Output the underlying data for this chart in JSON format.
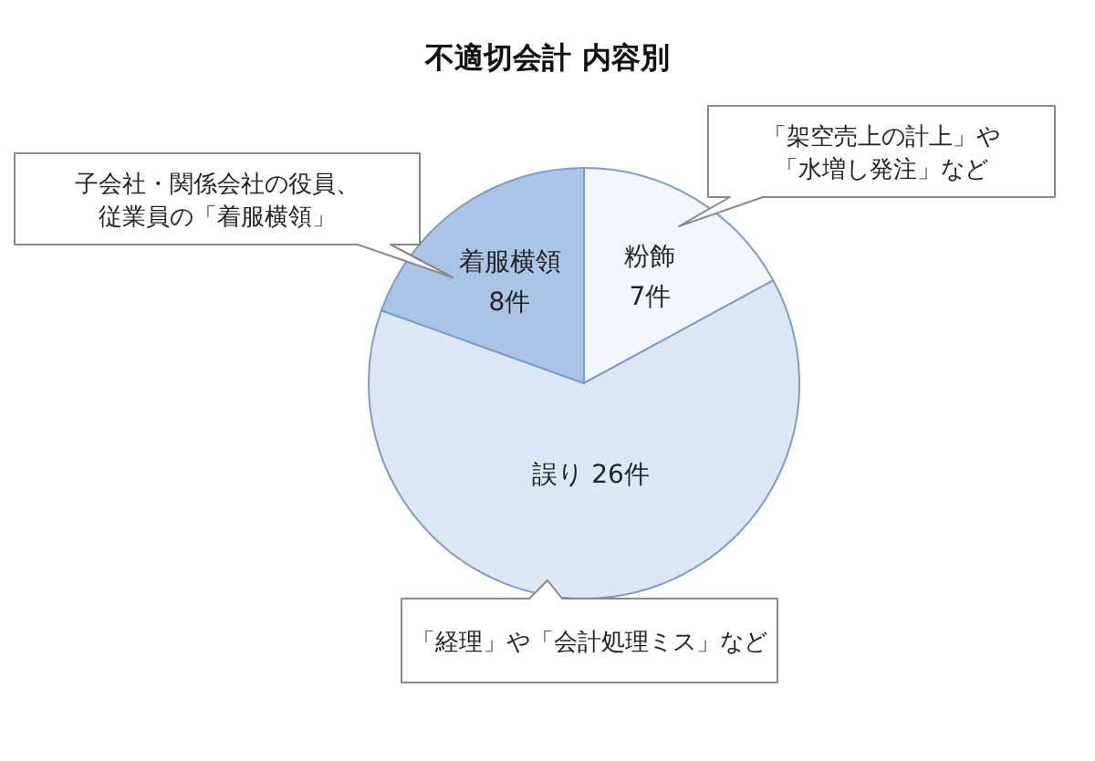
{
  "chart_data": {
    "type": "pie",
    "title": "不適切会計 内容別",
    "categories": [
      "粉飾",
      "誤り",
      "着服横領"
    ],
    "values": [
      7,
      26,
      8
    ],
    "value_labels": [
      "7件",
      "26件",
      "8件"
    ],
    "colors": [
      "#f3f6fc",
      "#dde7f5",
      "#a9c4e6"
    ],
    "annotations": [
      "「架空売上の計上」や「水増し発注」など",
      "子会社・関係会社の役員、従業員の「着服横領」",
      "「経理」や「会計処理ミス」など"
    ]
  }
}
